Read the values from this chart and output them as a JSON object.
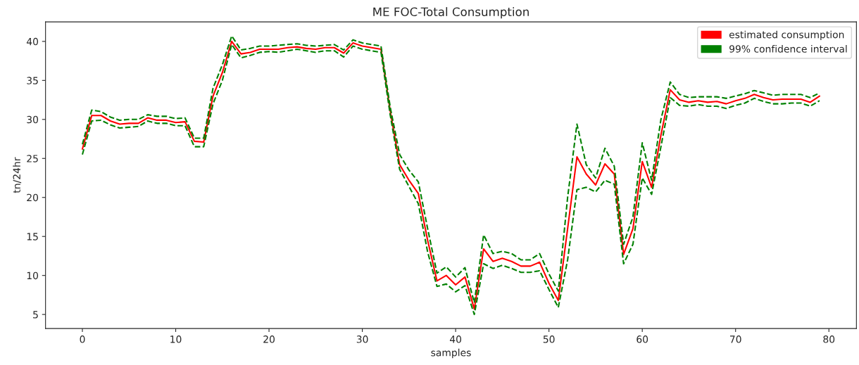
{
  "chart_data": {
    "type": "line",
    "title": "ME FOC-Total Consumption",
    "xlabel": "samples",
    "ylabel": "tn/24hr",
    "x": [
      0,
      1,
      2,
      3,
      4,
      5,
      6,
      7,
      8,
      9,
      10,
      11,
      12,
      13,
      14,
      15,
      16,
      17,
      18,
      19,
      20,
      21,
      22,
      23,
      24,
      25,
      26,
      27,
      28,
      29,
      30,
      31,
      32,
      33,
      34,
      35,
      36,
      37,
      38,
      39,
      40,
      41,
      42,
      43,
      44,
      45,
      46,
      47,
      48,
      49,
      50,
      51,
      52,
      53,
      54,
      55,
      56,
      57,
      58,
      59,
      60,
      61,
      62,
      63,
      64,
      65,
      66,
      67,
      68,
      69,
      70,
      71,
      72,
      73,
      74,
      75,
      76,
      77,
      78,
      79
    ],
    "series": [
      {
        "name": "estimated consumption",
        "color": "#ff0000",
        "line_style": "solid",
        "values": [
          26.2,
          30.5,
          30.5,
          29.8,
          29.4,
          29.5,
          29.5,
          30.2,
          29.9,
          29.9,
          29.6,
          29.7,
          27.2,
          27.1,
          33,
          36,
          40,
          38.4,
          38.6,
          39,
          39,
          39,
          39.2,
          39.3,
          39.1,
          39,
          39.2,
          39.2,
          38.5,
          39.8,
          39.4,
          39.2,
          39,
          31,
          24.2,
          22.2,
          20.5,
          14.5,
          9.3,
          10,
          8.8,
          9.8,
          5.7,
          13.4,
          11.8,
          12.2,
          11.8,
          11.2,
          11.2,
          11.7,
          9,
          6.8,
          16,
          25.2,
          23,
          21.6,
          24.3,
          23,
          12.7,
          16,
          24.6,
          21.3,
          28,
          33.8,
          32.5,
          32.2,
          32.4,
          32.2,
          32.3,
          32,
          32.4,
          32.7,
          33.2,
          32.8,
          32.5,
          32.6,
          32.6,
          32.6,
          32.2,
          33
        ]
      },
      {
        "name": "99% confidence interval",
        "color": "#008000",
        "line_style": "dashed",
        "values": [
          26.8,
          31.2,
          31,
          30.3,
          29.9,
          30,
          30,
          30.6,
          30.4,
          30.4,
          30.1,
          30.2,
          27.6,
          27.6,
          34,
          37,
          40.7,
          38.9,
          39.1,
          39.4,
          39.4,
          39.5,
          39.6,
          39.7,
          39.5,
          39.4,
          39.5,
          39.6,
          38.9,
          40.2,
          39.8,
          39.6,
          39.4,
          31.5,
          25.5,
          23.5,
          22,
          16,
          10.3,
          11.1,
          9.8,
          11,
          6.5,
          15.2,
          12.8,
          13.1,
          12.8,
          12,
          12,
          12.8,
          10.2,
          8,
          20,
          29.4,
          24.2,
          22.5,
          26.3,
          24,
          14,
          17.5,
          27,
          22.2,
          30,
          34.8,
          33.2,
          32.8,
          32.9,
          32.9,
          32.9,
          32.7,
          33,
          33.3,
          33.7,
          33.4,
          33.1,
          33.2,
          33.2,
          33.2,
          32.8,
          33.4
        ]
      },
      {
        "color": "#008000",
        "line_style": "dashed",
        "values": [
          25.5,
          29.8,
          29.9,
          29.3,
          28.9,
          29,
          29.1,
          29.8,
          29.5,
          29.5,
          29.2,
          29.2,
          26.5,
          26.5,
          32,
          35,
          39.6,
          37.9,
          38.2,
          38.6,
          38.7,
          38.6,
          38.8,
          39,
          38.8,
          38.6,
          38.8,
          38.8,
          38,
          39.4,
          39,
          38.8,
          38.6,
          30.5,
          23.6,
          21.4,
          19.2,
          13,
          8.6,
          8.9,
          7.9,
          8.7,
          5,
          11.5,
          10.9,
          11.3,
          10.9,
          10.4,
          10.4,
          10.6,
          8.2,
          5.9,
          12,
          21,
          21.3,
          20.7,
          22.2,
          21.7,
          11.5,
          14,
          22.5,
          20.4,
          26.5,
          32.8,
          31.8,
          31.7,
          31.9,
          31.7,
          31.7,
          31.4,
          31.8,
          32.1,
          32.7,
          32.3,
          32,
          32,
          32.1,
          32.1,
          31.7,
          32.4
        ]
      }
    ],
    "xlim": [
      -3.95,
      82.95
    ],
    "xticks": [
      0,
      10,
      20,
      30,
      40,
      50,
      60,
      70,
      80
    ],
    "ylim": [
      3.2,
      42.5
    ],
    "yticks": [
      5,
      10,
      15,
      20,
      25,
      30,
      35,
      40
    ],
    "grid": false,
    "legend": "top right"
  }
}
